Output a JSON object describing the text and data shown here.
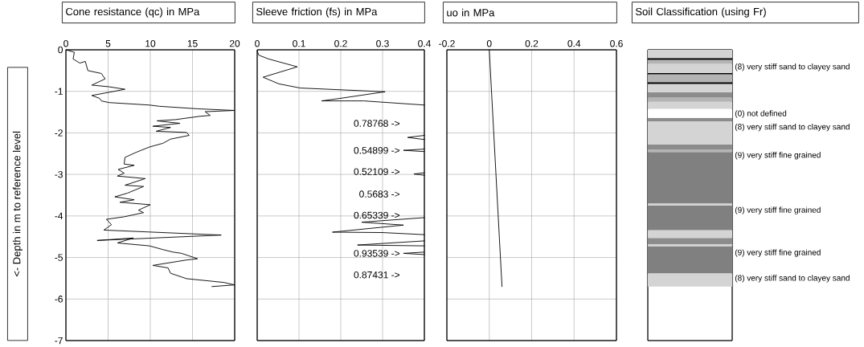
{
  "chart_data": [
    {
      "type": "line",
      "title": "Cone resistance (qc) in MPa",
      "ylabel": "<- Depth in m to reference level",
      "xlim": [
        0,
        20
      ],
      "xticks": [
        0,
        5,
        10,
        15,
        20
      ],
      "ylim": [
        -7,
        0
      ],
      "yticks": [
        0,
        -1,
        -2,
        -3,
        -4,
        -5,
        -6,
        -7
      ],
      "grid": true,
      "series": [
        {
          "color": "#000000",
          "x": [
            0,
            1,
            0.85,
            1.65,
            2.3,
            2.6,
            4.2,
            4.65,
            3.07,
            5.1,
            7,
            4.65,
            3.07,
            4,
            4.2,
            5.1,
            9.9,
            11.1,
            15.6,
            20,
            16.5,
            17.1,
            15.9,
            13,
            10.8,
            13.5,
            10.3,
            12.4,
            10.7,
            14.3,
            14.6,
            12.4,
            11.5,
            9.9,
            8.3,
            7,
            6.9,
            8.1,
            6.2,
            6.9,
            6.1,
            9.4,
            7,
            9.2,
            7.3,
            5.8,
            8.1,
            6.4,
            10,
            8.6,
            9.2,
            6.9,
            4.8,
            5.4,
            4.5,
            8,
            18.4,
            3.7,
            8,
            6.1,
            9.9,
            11.5,
            12.7,
            13.7,
            15.6,
            14.3,
            10.3,
            12.1,
            12.4,
            14.3,
            18.7,
            20,
            17.3
          ],
          "values": [
            0,
            -0.06,
            -0.22,
            -0.32,
            -0.28,
            -0.5,
            -0.57,
            -0.7,
            -0.85,
            -0.89,
            -0.95,
            -1.04,
            -1.1,
            -1.17,
            -1.23,
            -1.27,
            -1.33,
            -1.36,
            -1.42,
            -1.46,
            -1.49,
            -1.58,
            -1.6,
            -1.68,
            -1.71,
            -1.77,
            -1.84,
            -1.87,
            -1.96,
            -1.99,
            -2.06,
            -2.15,
            -2.25,
            -2.34,
            -2.47,
            -2.59,
            -2.75,
            -2.78,
            -2.88,
            -2.97,
            -3.04,
            -3.1,
            -3.26,
            -3.29,
            -3.45,
            -3.54,
            -3.61,
            -3.67,
            -3.73,
            -3.86,
            -3.92,
            -4.02,
            -4.08,
            -4.21,
            -4.34,
            -4.37,
            -4.46,
            -4.59,
            -4.53,
            -4.65,
            -4.72,
            -4.81,
            -4.87,
            -4.9,
            -5.03,
            -5.06,
            -5.19,
            -5.25,
            -5.38,
            -5.51,
            -5.6,
            -5.66,
            -5.7
          ]
        }
      ]
    },
    {
      "type": "line",
      "title": "Sleeve friction (fs) in MPa",
      "xlim": [
        0,
        0.4
      ],
      "xticks": [
        0,
        0.1,
        0.2,
        0.3,
        0.4
      ],
      "ylim": [
        -7,
        0
      ],
      "yticks": [
        0,
        -1,
        -2,
        -3,
        -4,
        -5,
        -6,
        -7
      ],
      "tick_labels": "x",
      "grid": true,
      "series": [
        {
          "color": "#000000",
          "x": [
            0,
            0.004,
            0.027,
            0.096,
            0.014,
            0.052,
            0.103,
            0.306,
            0.198,
            0.154,
            0.255,
            0.4,
            null,
            0.4,
            0.36,
            0.4,
            null,
            0.4,
            0.35,
            0.4,
            null,
            0.4,
            0.375,
            0.4,
            null,
            0.4,
            0.25,
            0.35,
            0.18,
            0.3,
            0.4,
            null,
            0.4,
            0.24,
            0.4,
            null,
            0.4,
            0.35,
            0.4
          ],
          "values": [
            -0.03,
            -0.13,
            -0.22,
            -0.41,
            -0.66,
            -0.82,
            -0.92,
            -1.01,
            -1.17,
            -1.23,
            -1.23,
            -1.33,
            null,
            -2.06,
            -2.11,
            -2.16,
            null,
            -2.39,
            -2.42,
            -2.45,
            null,
            -2.96,
            -2.99,
            -3.02,
            null,
            -4.04,
            -4.15,
            -4.22,
            -4.39,
            -4.4,
            -4.45,
            null,
            -4.6,
            -4.7,
            -4.72,
            null,
            -4.87,
            -4.9,
            -4.93
          ]
        }
      ],
      "annotations": [
        "0.78768 ->",
        "0.54899 ->",
        "0.52109 ->",
        "0.5683 ->",
        "0.65339 ->",
        "0.93539 ->",
        "0.87431 ->"
      ]
    },
    {
      "type": "line",
      "title": "uo in MPa",
      "xlim": [
        -0.2,
        0.6
      ],
      "xticks": [
        -0.2,
        0,
        0.2,
        0.4,
        0.6
      ],
      "ylim": [
        -7,
        0
      ],
      "yticks": [
        0,
        -1,
        -2,
        -3,
        -4,
        -5,
        -6,
        -7
      ],
      "tick_labels": "x",
      "grid": true,
      "series": [
        {
          "color": "#000000",
          "x": [
            0,
            0.06
          ],
          "values": [
            0,
            -5.7
          ]
        }
      ]
    },
    {
      "type": "bar",
      "title": "Soil Classification (using Fr)",
      "categories": [
        null
      ],
      "stacked": true,
      "ylim": [
        -7,
        0
      ],
      "yticks": [
        0,
        -1,
        -2,
        -3,
        -4,
        -5,
        -6,
        -7
      ],
      "tick_labels": false,
      "series": [
        {
          "color": "#d4d4d4",
          "values": [
            -0.2
          ]
        },
        {
          "color": "#000000",
          "values": [
            -0.04
          ]
        },
        {
          "color": "#b4b4b4",
          "values": [
            -0.1
          ]
        },
        {
          "color": "#d4d4d4",
          "values": [
            -0.22
          ]
        },
        {
          "color": "#000000",
          "values": [
            -0.03
          ]
        },
        {
          "color": "#b4b4b4",
          "values": [
            -0.19
          ]
        },
        {
          "color": "#000000",
          "values": [
            -0.04
          ]
        },
        {
          "color": "#d4d4d4",
          "values": [
            -0.2
          ]
        },
        {
          "color": "#8c8c8c",
          "values": [
            -0.13
          ]
        },
        {
          "color": "#b4b4b4",
          "values": [
            -0.1
          ]
        },
        {
          "color": "#d4d4d4",
          "values": [
            -0.17
          ]
        },
        {
          "color": "#ffffff",
          "values": [
            -0.22
          ]
        },
        {
          "color": "#8c8c8c",
          "values": [
            -0.08
          ]
        },
        {
          "color": "#d4d4d4",
          "values": [
            -0.56
          ]
        },
        {
          "color": "#8c8c8c",
          "values": [
            -0.12
          ]
        },
        {
          "color": "#b4b4b4",
          "values": [
            -0.06
          ]
        },
        {
          "color": "#808080",
          "values": [
            -1.24
          ]
        },
        {
          "color": "#d4d4d4",
          "values": [
            -0.05
          ]
        },
        {
          "color": "#808080",
          "values": [
            -0.59
          ]
        },
        {
          "color": "#d4d4d4",
          "values": [
            -0.19
          ]
        },
        {
          "color": "#8c8c8c",
          "values": [
            -0.15
          ]
        },
        {
          "color": "#d4d4d4",
          "values": [
            -0.05
          ]
        },
        {
          "color": "#808080",
          "values": [
            -0.65
          ]
        },
        {
          "color": "#d4d4d4",
          "values": [
            -0.32
          ]
        }
      ],
      "annotations": [
        "(8) very stiff sand to clayey sand",
        "(0) not defined",
        "(8) very stiff sand to clayey sand",
        "(9) very stiff fine grained",
        "(9) very stiff fine grained",
        "(9) very stiff fine grained",
        "(8) very stiff sand to clayey sand"
      ]
    }
  ]
}
